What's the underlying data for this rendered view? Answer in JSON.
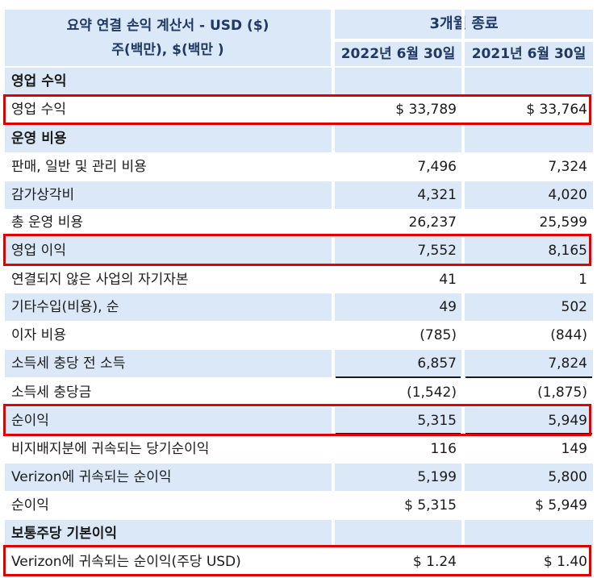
{
  "header": {
    "title_line1": "요약 연결 손익 계산서 - USD ($)",
    "title_line2": "주(백만), $(백만 )",
    "period": "3개월 종료",
    "date1": "2022년 6월 30일",
    "date2": "2021년 6월 30일"
  },
  "rows": [
    {
      "label": "영업 수익",
      "v1": "",
      "v2": ""
    },
    {
      "label": "영업 수익",
      "v1": "$ 33,789",
      "v2": "$ 33,764"
    },
    {
      "label": "운영 비용",
      "v1": "",
      "v2": ""
    },
    {
      "label": "판매, 일반 및 관리 비용",
      "v1": "7,496",
      "v2": "7,324"
    },
    {
      "label": "감가상각비",
      "v1": "4,321",
      "v2": "4,020"
    },
    {
      "label": "총 운영 비용",
      "v1": "26,237",
      "v2": "25,599"
    },
    {
      "label": "영업 이익",
      "v1": "7,552",
      "v2": "8,165"
    },
    {
      "label": "연결되지 않은 사업의 자기자본",
      "v1": "41",
      "v2": "1"
    },
    {
      "label": "기타수입(비용), 순",
      "v1": "49",
      "v2": "502"
    },
    {
      "label": "이자 비용",
      "v1": "(785)",
      "v2": "(844)"
    },
    {
      "label": "소득세 충당 전 소득",
      "v1": "6,857",
      "v2": "7,824"
    },
    {
      "label": "소득세 충당금",
      "v1": "(1,542)",
      "v2": "(1,875)"
    },
    {
      "label": "순이익",
      "v1": "5,315",
      "v2": "5,949"
    },
    {
      "label": "비지배지분에 귀속되는 당기순이익",
      "v1": "116",
      "v2": "149"
    },
    {
      "label": "Verizon에 귀속되는 순이익",
      "v1": "5,199",
      "v2": "5,800"
    },
    {
      "label": "순이익",
      "v1": "$ 5,315",
      "v2": "$ 5,949"
    },
    {
      "label": "보통주당 기본이익",
      "v1": "",
      "v2": ""
    },
    {
      "label": "Verizon에 귀속되는 순이익(주당 USD)",
      "v1": "$ 1.24",
      "v2": "$ 1.40"
    }
  ],
  "colors": {
    "header_bg": "#dbe8f7",
    "highlight": "#e00000"
  }
}
